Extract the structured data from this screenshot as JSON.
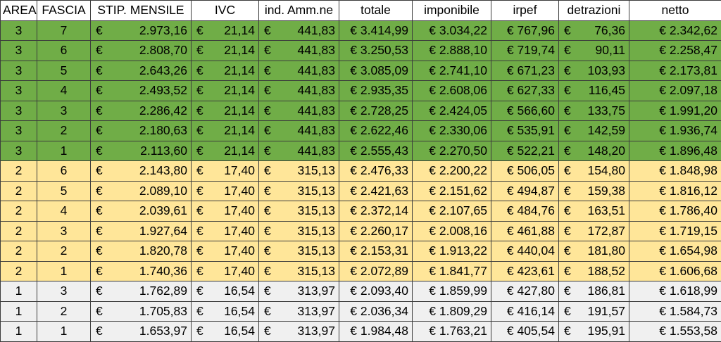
{
  "headers": [
    "AREA",
    "FASCIA",
    "STIP. MENSILE",
    "IVC",
    "ind. Amm.ne",
    "totale",
    "imponibile",
    "irpef",
    "detrazioni",
    "netto"
  ],
  "currency": "€",
  "colors": {
    "area3": "#70ad47",
    "area2": "#ffe699",
    "area1": "#f0f0f0"
  },
  "rows": [
    {
      "area": "3",
      "fascia": "7",
      "stip": "2.973,16",
      "ivc": "21,14",
      "ind": "441,83",
      "totale": "€ 3.414,99",
      "imponibile": "€ 3.034,22",
      "irpef": "€ 767,96",
      "detrazioni": "76,36",
      "netto": "€ 2.342,62"
    },
    {
      "area": "3",
      "fascia": "6",
      "stip": "2.808,70",
      "ivc": "21,14",
      "ind": "441,83",
      "totale": "€ 3.250,53",
      "imponibile": "€ 2.888,10",
      "irpef": "€ 719,74",
      "detrazioni": "90,11",
      "netto": "€ 2.258,47"
    },
    {
      "area": "3",
      "fascia": "5",
      "stip": "2.643,26",
      "ivc": "21,14",
      "ind": "441,83",
      "totale": "€ 3.085,09",
      "imponibile": "€ 2.741,10",
      "irpef": "€ 671,23",
      "detrazioni": "103,93",
      "netto": "€ 2.173,81"
    },
    {
      "area": "3",
      "fascia": "4",
      "stip": "2.493,52",
      "ivc": "21,14",
      "ind": "441,83",
      "totale": "€ 2.935,35",
      "imponibile": "€ 2.608,06",
      "irpef": "€ 627,33",
      "detrazioni": "116,45",
      "netto": "€ 2.097,18"
    },
    {
      "area": "3",
      "fascia": "3",
      "stip": "2.286,42",
      "ivc": "21,14",
      "ind": "441,83",
      "totale": "€ 2.728,25",
      "imponibile": "€ 2.424,05",
      "irpef": "€ 566,60",
      "detrazioni": "133,75",
      "netto": "€ 1.991,20"
    },
    {
      "area": "3",
      "fascia": "2",
      "stip": "2.180,63",
      "ivc": "21,14",
      "ind": "441,83",
      "totale": "€ 2.622,46",
      "imponibile": "€ 2.330,06",
      "irpef": "€ 535,91",
      "detrazioni": "142,59",
      "netto": "€ 1.936,74"
    },
    {
      "area": "3",
      "fascia": "1",
      "stip": "2.113,60",
      "ivc": "21,14",
      "ind": "441,83",
      "totale": "€ 2.555,43",
      "imponibile": "€ 2.270,50",
      "irpef": "€ 522,21",
      "detrazioni": "148,20",
      "netto": "€ 1.896,48"
    },
    {
      "area": "2",
      "fascia": "6",
      "stip": "2.143,80",
      "ivc": "17,40",
      "ind": "315,13",
      "totale": "€ 2.476,33",
      "imponibile": "€ 2.200,22",
      "irpef": "€ 506,05",
      "detrazioni": "154,80",
      "netto": "€ 1.848,98"
    },
    {
      "area": "2",
      "fascia": "5",
      "stip": "2.089,10",
      "ivc": "17,40",
      "ind": "315,13",
      "totale": "€ 2.421,63",
      "imponibile": "€ 2.151,62",
      "irpef": "€ 494,87",
      "detrazioni": "159,38",
      "netto": "€ 1.816,12"
    },
    {
      "area": "2",
      "fascia": "4",
      "stip": "2.039,61",
      "ivc": "17,40",
      "ind": "315,13",
      "totale": "€ 2.372,14",
      "imponibile": "€ 2.107,65",
      "irpef": "€ 484,76",
      "detrazioni": "163,51",
      "netto": "€ 1.786,40"
    },
    {
      "area": "2",
      "fascia": "3",
      "stip": "1.927,64",
      "ivc": "17,40",
      "ind": "315,13",
      "totale": "€ 2.260,17",
      "imponibile": "€ 2.008,16",
      "irpef": "€ 461,88",
      "detrazioni": "172,87",
      "netto": "€ 1.719,15"
    },
    {
      "area": "2",
      "fascia": "2",
      "stip": "1.820,78",
      "ivc": "17,40",
      "ind": "315,13",
      "totale": "€ 2.153,31",
      "imponibile": "€ 1.913,22",
      "irpef": "€ 440,04",
      "detrazioni": "181,80",
      "netto": "€ 1.654,98"
    },
    {
      "area": "2",
      "fascia": "1",
      "stip": "1.740,36",
      "ivc": "17,40",
      "ind": "315,13",
      "totale": "€ 2.072,89",
      "imponibile": "€ 1.841,77",
      "irpef": "€ 423,61",
      "detrazioni": "188,52",
      "netto": "€ 1.606,68"
    },
    {
      "area": "1",
      "fascia": "3",
      "stip": "1.762,89",
      "ivc": "16,54",
      "ind": "313,97",
      "totale": "€ 2.093,40",
      "imponibile": "€ 1.859,99",
      "irpef": "€ 427,80",
      "detrazioni": "186,81",
      "netto": "€ 1.618,99"
    },
    {
      "area": "1",
      "fascia": "2",
      "stip": "1.705,83",
      "ivc": "16,54",
      "ind": "313,97",
      "totale": "€ 2.036,34",
      "imponibile": "€ 1.809,29",
      "irpef": "€ 416,14",
      "detrazioni": "191,57",
      "netto": "€ 1.584,73"
    },
    {
      "area": "1",
      "fascia": "1",
      "stip": "1.653,97",
      "ivc": "16,54",
      "ind": "313,97",
      "totale": "€ 1.984,48",
      "imponibile": "€ 1.763,21",
      "irpef": "€ 405,54",
      "detrazioni": "195,91",
      "netto": "€ 1.553,58"
    }
  ]
}
